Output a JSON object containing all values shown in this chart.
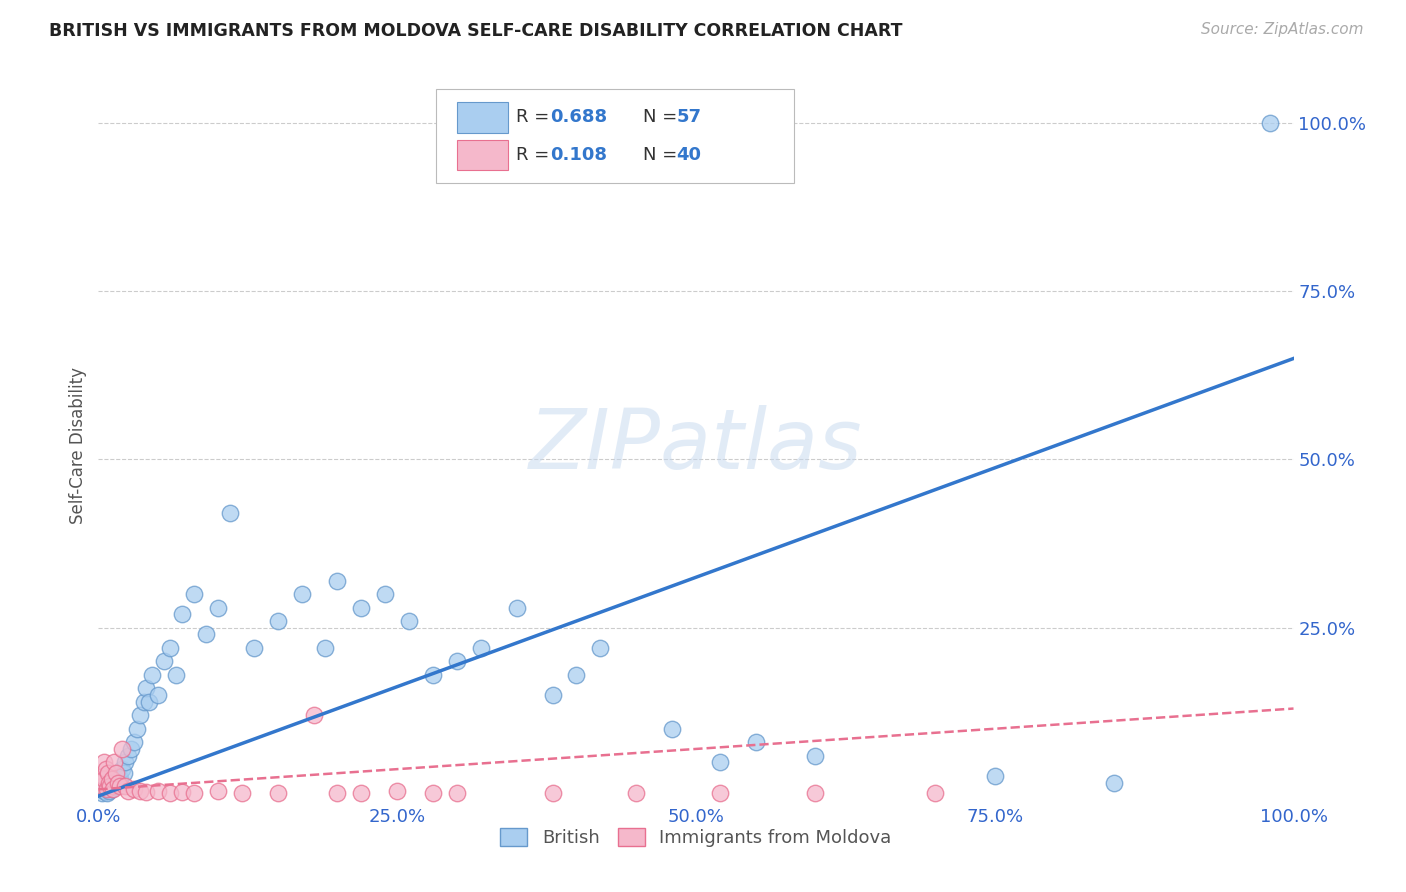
{
  "title": "BRITISH VS IMMIGRANTS FROM MOLDOVA SELF-CARE DISABILITY CORRELATION CHART",
  "source": "Source: ZipAtlas.com",
  "ylabel": "Self-Care Disability",
  "xlim": [
    0,
    1.0
  ],
  "ylim": [
    -0.01,
    1.05
  ],
  "xtick_labels": [
    "0.0%",
    "25.0%",
    "50.0%",
    "75.0%",
    "100.0%"
  ],
  "xtick_vals": [
    0.0,
    0.25,
    0.5,
    0.75,
    1.0
  ],
  "ytick_labels_right": [
    "100.0%",
    "75.0%",
    "50.0%",
    "25.0%"
  ],
  "ytick_vals_right": [
    1.0,
    0.75,
    0.5,
    0.25
  ],
  "background_color": "#ffffff",
  "grid_color": "#cccccc",
  "watermark": "ZIPatlas",
  "british_color": "#aacef0",
  "moldova_color": "#f5b8cb",
  "british_edge_color": "#6699cc",
  "moldova_edge_color": "#e87090",
  "british_line_color": "#3377cc",
  "moldova_line_color": "#e87090",
  "legend_color": "#3377cc",
  "british_R": 0.688,
  "british_N": 57,
  "moldova_R": 0.108,
  "moldova_N": 40,
  "british_scatter_x": [
    0.003,
    0.005,
    0.006,
    0.007,
    0.008,
    0.009,
    0.01,
    0.011,
    0.012,
    0.013,
    0.015,
    0.016,
    0.017,
    0.018,
    0.02,
    0.021,
    0.022,
    0.025,
    0.027,
    0.03,
    0.032,
    0.035,
    0.038,
    0.04,
    0.042,
    0.045,
    0.05,
    0.055,
    0.06,
    0.065,
    0.07,
    0.08,
    0.09,
    0.1,
    0.11,
    0.13,
    0.15,
    0.17,
    0.19,
    0.2,
    0.22,
    0.24,
    0.26,
    0.28,
    0.3,
    0.32,
    0.35,
    0.38,
    0.4,
    0.42,
    0.48,
    0.52,
    0.55,
    0.6,
    0.75,
    0.85,
    0.98
  ],
  "british_scatter_y": [
    0.005,
    0.008,
    0.01,
    0.005,
    0.012,
    0.008,
    0.015,
    0.01,
    0.02,
    0.015,
    0.025,
    0.018,
    0.03,
    0.025,
    0.04,
    0.035,
    0.05,
    0.06,
    0.07,
    0.08,
    0.1,
    0.12,
    0.14,
    0.16,
    0.14,
    0.18,
    0.15,
    0.2,
    0.22,
    0.18,
    0.27,
    0.3,
    0.24,
    0.28,
    0.42,
    0.22,
    0.26,
    0.3,
    0.22,
    0.32,
    0.28,
    0.3,
    0.26,
    0.18,
    0.2,
    0.22,
    0.28,
    0.15,
    0.18,
    0.22,
    0.1,
    0.05,
    0.08,
    0.06,
    0.03,
    0.02,
    1.0
  ],
  "moldova_scatter_x": [
    0.002,
    0.003,
    0.004,
    0.005,
    0.005,
    0.006,
    0.007,
    0.008,
    0.009,
    0.01,
    0.011,
    0.012,
    0.013,
    0.015,
    0.016,
    0.018,
    0.02,
    0.022,
    0.025,
    0.03,
    0.035,
    0.04,
    0.05,
    0.06,
    0.07,
    0.08,
    0.1,
    0.12,
    0.15,
    0.18,
    0.2,
    0.22,
    0.25,
    0.28,
    0.3,
    0.38,
    0.45,
    0.52,
    0.6,
    0.7
  ],
  "moldova_scatter_y": [
    0.02,
    0.015,
    0.03,
    0.05,
    0.025,
    0.04,
    0.01,
    0.035,
    0.02,
    0.015,
    0.025,
    0.01,
    0.05,
    0.035,
    0.02,
    0.015,
    0.07,
    0.015,
    0.008,
    0.01,
    0.008,
    0.006,
    0.008,
    0.005,
    0.006,
    0.005,
    0.008,
    0.005,
    0.005,
    0.12,
    0.005,
    0.005,
    0.008,
    0.005,
    0.005,
    0.005,
    0.005,
    0.005,
    0.005,
    0.005
  ],
  "brit_line_x0": 0.0,
  "brit_line_y0": 0.0,
  "brit_line_x1": 1.0,
  "brit_line_y1": 0.65,
  "mold_line_x0": 0.0,
  "mold_line_y0": 0.01,
  "mold_line_x1": 1.0,
  "mold_line_y1": 0.13
}
